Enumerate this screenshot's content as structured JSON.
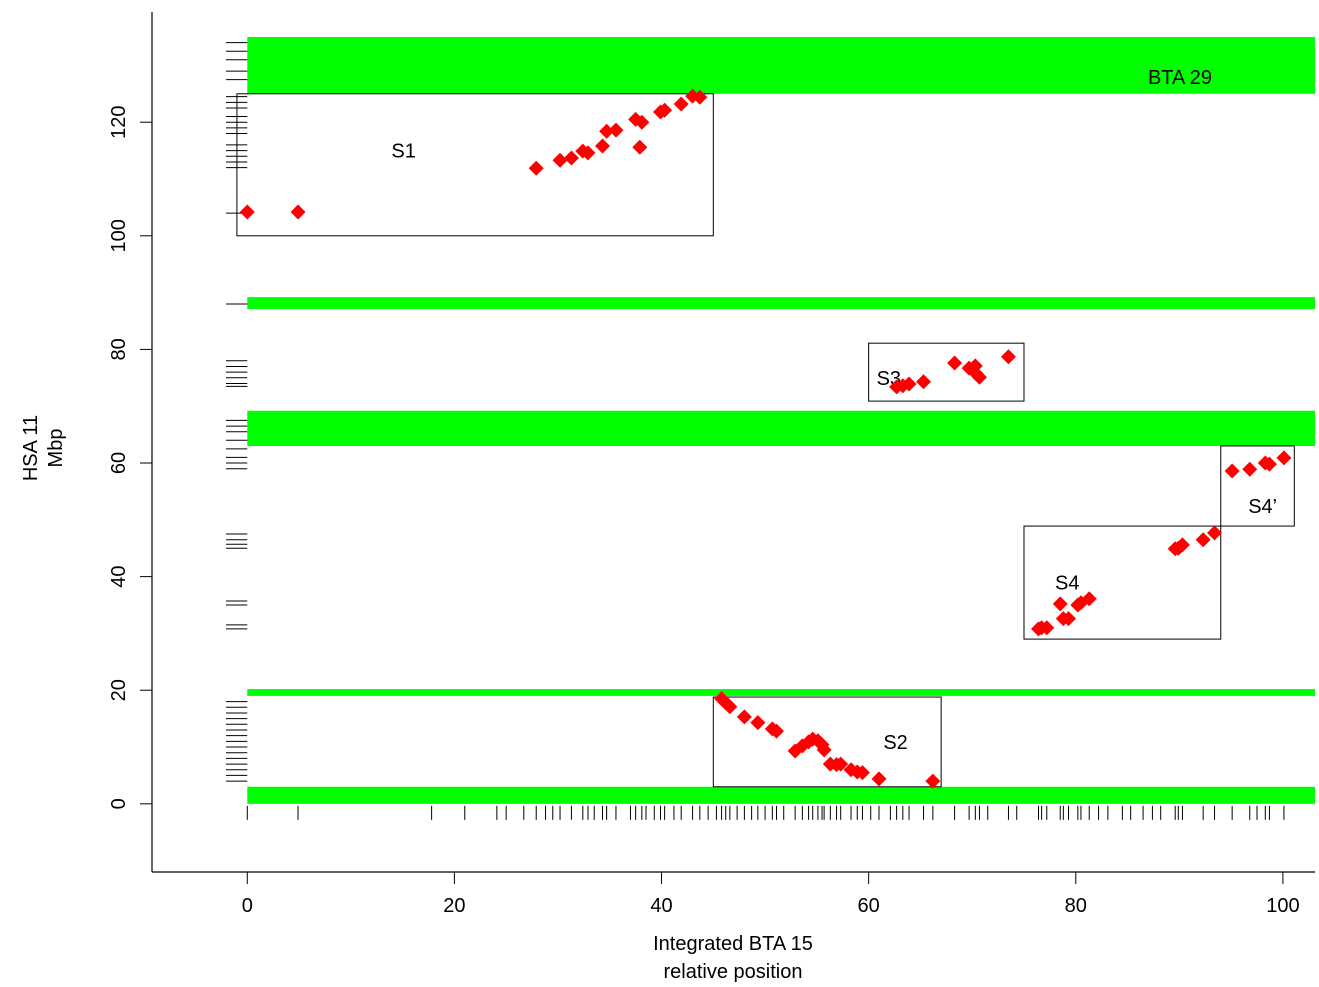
{
  "chart_data": {
    "type": "scatter",
    "xlabel": [
      "Integrated BTA 15",
      "relative position"
    ],
    "ylabel": [
      "HSA 11",
      "Mbp"
    ],
    "xlim": [
      -9.2,
      103.1
    ],
    "ylim": [
      -12,
      139.4
    ],
    "xticks": [
      0,
      20,
      40,
      60,
      80,
      100
    ],
    "yticks": [
      0,
      20,
      40,
      60,
      80,
      100,
      120
    ],
    "color": "#ff0000",
    "band_color": "#00ff00",
    "band_label": "BTA 29",
    "bands": [
      [
        125,
        135
      ],
      [
        87.1,
        89.2
      ],
      [
        63,
        69.2
      ],
      [
        19,
        20.2
      ],
      [
        0,
        3
      ]
    ],
    "boxes": [
      {
        "label": "S1",
        "x": [
          -1,
          45
        ],
        "y": [
          100,
          125
        ]
      },
      {
        "label": "S2",
        "x": [
          45,
          67
        ],
        "y": [
          3,
          18.8
        ]
      },
      {
        "label": "S3",
        "x": [
          60,
          75
        ],
        "y": [
          70.9,
          81.1
        ]
      },
      {
        "label": "S4",
        "x": [
          75,
          94
        ],
        "y": [
          29,
          48.9
        ]
      },
      {
        "label": "S4’",
        "x": [
          94,
          101.1
        ],
        "y": [
          48.9,
          63
        ]
      }
    ],
    "x": [
      0,
      4.9,
      27.9,
      30.2,
      31.3,
      32.4,
      32.9,
      34.3,
      34.7,
      35.6,
      37.5,
      38.1,
      37.9,
      39.9,
      40.3,
      41.9,
      43,
      43.7,
      62.7,
      63.3,
      63.9,
      65.3,
      68.3,
      69.7,
      70.3,
      70.4,
      70.7,
      73.5,
      95.1,
      96.8,
      98.3,
      98.7,
      100.1,
      93.4,
      92.3,
      90.3,
      89.9,
      89.6,
      81.3,
      80.5,
      80.2,
      79.3,
      78.8,
      78.5,
      77.2,
      76.7,
      76.4,
      45.8,
      46.2,
      46.6,
      48,
      49.3,
      50.7,
      51.1,
      52.9,
      53.6,
      54.2,
      54.6,
      55.1,
      55.5,
      55.7,
      56.3,
      56.9,
      57.3,
      58.3,
      58.9,
      59.4,
      61,
      66.2
    ],
    "values": [
      104.2,
      104.2,
      111.9,
      113.3,
      113.7,
      114.9,
      114.6,
      115.8,
      118.4,
      118.6,
      120.5,
      120,
      115.6,
      121.8,
      122.1,
      123.2,
      124.6,
      124.4,
      73.4,
      73.6,
      73.9,
      74.3,
      77.6,
      76.7,
      77.1,
      75.7,
      75.1,
      78.7,
      58.6,
      58.9,
      60,
      59.8,
      60.9,
      47.7,
      46.5,
      45.6,
      45,
      44.9,
      36.1,
      35.4,
      35,
      32.6,
      32.6,
      35.2,
      31,
      31,
      30.8,
      18.5,
      17.8,
      17.1,
      15.3,
      14.3,
      13.2,
      12.8,
      9.3,
      10.2,
      10.9,
      11.4,
      11.1,
      10.4,
      9.5,
      7,
      6.9,
      7,
      6,
      5.6,
      5.5,
      4.4,
      4
    ],
    "rug_y": [
      134,
      132.5,
      131,
      129,
      127.5,
      124.5,
      123.5,
      122.5,
      121,
      120,
      119,
      118,
      116,
      115,
      114,
      113,
      112,
      104,
      88,
      78,
      77,
      76,
      75,
      74,
      73.5,
      67.5,
      66.5,
      65.5,
      64,
      62.5,
      61,
      60,
      59,
      47.5,
      46.5,
      45.7,
      45,
      35.7,
      35,
      31.5,
      30.8,
      18,
      17,
      16,
      15,
      14,
      13,
      12,
      11,
      10,
      9,
      8,
      7,
      6,
      5,
      4
    ],
    "rug_x": [
      0,
      4.9,
      17.8,
      21,
      24.1,
      25,
      26.7,
      27.9,
      28.8,
      29.5,
      30.2,
      31.3,
      32.4,
      32.9,
      33.5,
      34.3,
      34.7,
      35.6,
      37,
      37.5,
      38.1,
      38.5,
      39.3,
      39.9,
      40.3,
      41.2,
      41.9,
      43,
      43.7,
      44.5,
      45.3,
      45.8,
      46.2,
      46.6,
      47.3,
      48,
      48.7,
      49.3,
      50,
      50.7,
      51.1,
      51.8,
      52.9,
      53.6,
      54.2,
      54.6,
      55.1,
      55.5,
      55.7,
      56.3,
      56.9,
      57.3,
      58.3,
      58.9,
      59.4,
      60.2,
      61,
      62.1,
      62.7,
      63.3,
      63.9,
      65.3,
      66.2,
      68.3,
      69.7,
      70.3,
      70.7,
      71.5,
      73.5,
      74.3,
      76.4,
      76.7,
      77.2,
      78.5,
      78.8,
      79.3,
      80.2,
      80.5,
      81.3,
      82.2,
      83.1,
      84.5,
      85.3,
      86.5,
      87.4,
      88.2,
      89.6,
      89.9,
      90.3,
      92.3,
      93.4,
      95.1,
      96.8,
      97.5,
      98.3,
      98.7,
      100.1
    ]
  }
}
